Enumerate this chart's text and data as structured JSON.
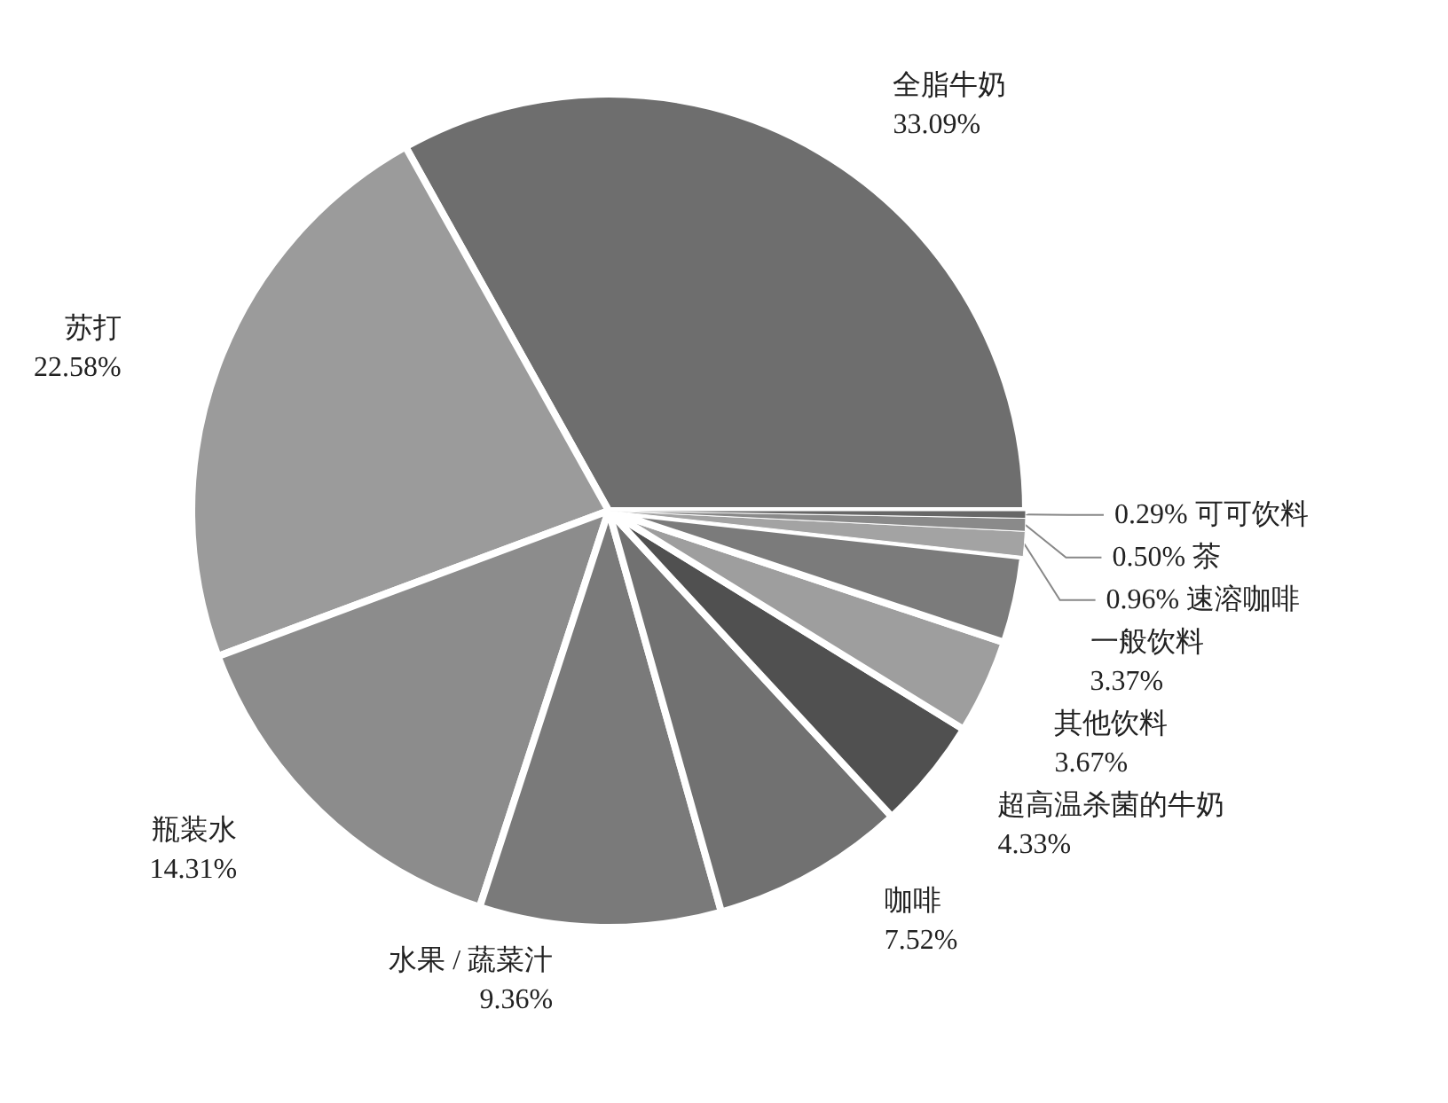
{
  "chart_data": {
    "type": "pie",
    "categories": [
      "全脂牛奶",
      "苏打",
      "瓶装水",
      "水果 / 蔬菜汁",
      "咖啡",
      "超高温杀菌的牛奶",
      "其他饮料",
      "一般饮料",
      "速溶咖啡",
      "茶",
      "可可饮料"
    ],
    "values": [
      33.09,
      22.58,
      14.31,
      9.36,
      7.52,
      4.33,
      3.67,
      3.37,
      0.96,
      0.5,
      0.29
    ],
    "colors": [
      "#6e6e6e",
      "#9b9b9b",
      "#8c8c8c",
      "#7a7a7a",
      "#717171",
      "#505050",
      "#9e9e9e",
      "#7b7b7b",
      "#a3a3a3",
      "#8a8a8a",
      "#676767"
    ],
    "value_labels": [
      "33.09%",
      "22.58%",
      "14.31%",
      "9.36%",
      "7.52%",
      "4.33%",
      "3.67%",
      "3.37%",
      "0.96%",
      "0.50%",
      "0.29%"
    ],
    "legend": false
  }
}
